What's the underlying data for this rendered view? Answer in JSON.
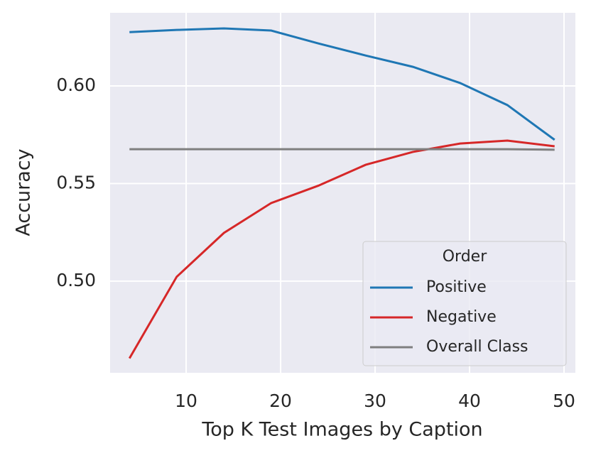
{
  "chart_data": {
    "type": "line",
    "x_label": "Top K Test Images by Caption",
    "y_label": "Accuracy",
    "x": [
      4,
      9,
      14,
      19,
      24,
      29,
      34,
      39,
      44,
      49
    ],
    "series": [
      {
        "name": "Positive",
        "color": "#1f77b4",
        "values": [
          0.6276,
          0.6287,
          0.6295,
          0.6284,
          0.6218,
          0.6156,
          0.6098,
          0.6015,
          0.5902,
          0.5724
        ]
      },
      {
        "name": "Negative",
        "color": "#d62728",
        "values": [
          0.4604,
          0.5022,
          0.5247,
          0.54,
          0.5489,
          0.5596,
          0.5662,
          0.5705,
          0.572,
          0.5691
        ]
      },
      {
        "name": "Overall Class",
        "color": "#7f7f7f",
        "values": [
          0.5676,
          0.5676,
          0.5676,
          0.5676,
          0.5676,
          0.5676,
          0.5676,
          0.5676,
          0.5676,
          0.5673
        ]
      }
    ],
    "legend_title": "Order",
    "legend_loc": "lower right",
    "xlim": [
      1.95,
      51.2
    ],
    "xticks": [
      10,
      20,
      30,
      40,
      50
    ],
    "ylim": [
      0.453,
      0.6375
    ],
    "yticks": [
      {
        "value": 0.5,
        "label": "0.50"
      },
      0.55,
      {
        "value": 0.6,
        "label": "0.60"
      }
    ],
    "grid": true
  }
}
